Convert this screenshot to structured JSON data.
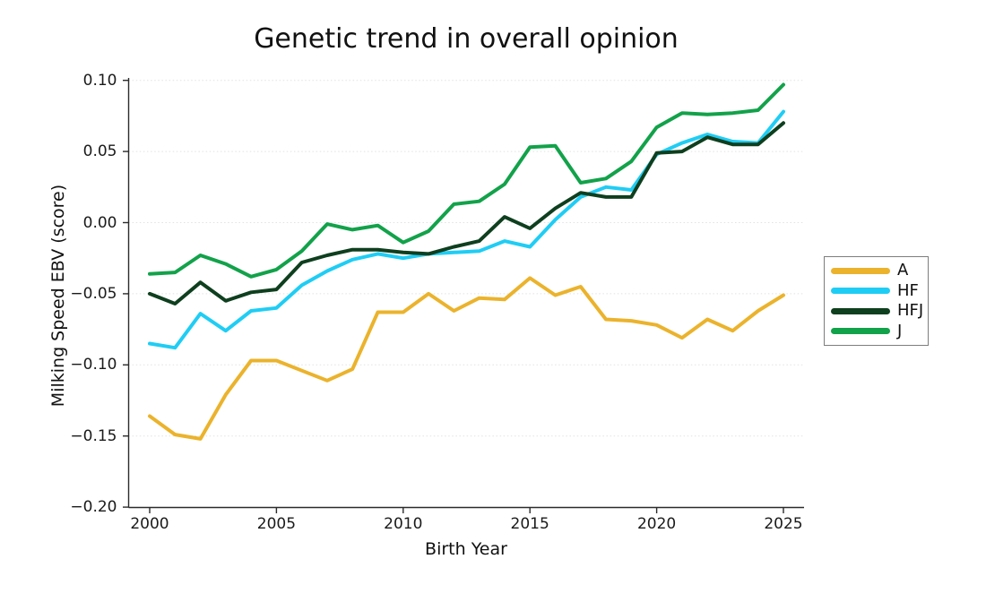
{
  "chart_data": {
    "type": "line",
    "title": "Genetic trend in overall opinion",
    "xlabel": "Birth Year",
    "ylabel": "Milking Speed EBV (score)",
    "xlim": [
      1999.1,
      2026
    ],
    "ylim": [
      -0.2,
      0.1
    ],
    "grid": "horizontal-dotted",
    "legend_position": "right-outside",
    "x": [
      2000,
      2001,
      2002,
      2003,
      2004,
      2005,
      2006,
      2007,
      2008,
      2009,
      2010,
      2011,
      2012,
      2013,
      2014,
      2015,
      2016,
      2017,
      2018,
      2019,
      2020,
      2021,
      2022,
      2023,
      2024,
      2025
    ],
    "xticks": {
      "values": [
        2000,
        2005,
        2010,
        2015,
        2020,
        2025
      ],
      "labels": [
        "2000",
        "2005",
        "2010",
        "2015",
        "2020",
        "2025"
      ]
    },
    "yticks": {
      "values": [
        0.1,
        0.05,
        0.0,
        -0.05,
        -0.1,
        -0.15,
        -0.2
      ],
      "labels": [
        "0.10",
        "0.05",
        "0.00",
        "−0.05",
        "−0.10",
        "−0.15",
        "−0.20"
      ]
    },
    "series": [
      {
        "name": "A",
        "color": "#EBB32C",
        "values": [
          -0.136,
          -0.149,
          -0.152,
          -0.121,
          -0.097,
          -0.097,
          -0.104,
          -0.111,
          -0.103,
          -0.063,
          -0.063,
          -0.05,
          -0.062,
          -0.053,
          -0.054,
          -0.039,
          -0.051,
          -0.045,
          -0.068,
          -0.069,
          -0.072,
          -0.081,
          -0.068,
          -0.076,
          -0.062,
          -0.051
        ]
      },
      {
        "name": "HF",
        "color": "#1FCDF4",
        "values": [
          -0.085,
          -0.088,
          -0.064,
          -0.076,
          -0.062,
          -0.06,
          -0.044,
          -0.034,
          -0.026,
          -0.022,
          -0.025,
          -0.022,
          -0.021,
          -0.02,
          -0.013,
          -0.017,
          0.002,
          0.018,
          0.025,
          0.023,
          0.048,
          0.056,
          0.062,
          0.057,
          0.056,
          0.078
        ]
      },
      {
        "name": "HFJ",
        "color": "#0E3F1E",
        "values": [
          -0.05,
          -0.057,
          -0.042,
          -0.055,
          -0.049,
          -0.047,
          -0.028,
          -0.023,
          -0.019,
          -0.019,
          -0.021,
          -0.022,
          -0.017,
          -0.013,
          0.004,
          -0.004,
          0.01,
          0.021,
          0.018,
          0.018,
          0.049,
          0.05,
          0.06,
          0.055,
          0.055,
          0.07
        ]
      },
      {
        "name": "J",
        "color": "#12A24A",
        "values": [
          -0.036,
          -0.035,
          -0.023,
          -0.029,
          -0.038,
          -0.033,
          -0.02,
          -0.001,
          -0.005,
          -0.002,
          -0.014,
          -0.006,
          0.013,
          0.015,
          0.027,
          0.053,
          0.054,
          0.028,
          0.031,
          0.043,
          0.067,
          0.077,
          0.076,
          0.077,
          0.079,
          0.097
        ]
      }
    ],
    "colors": {
      "grid": "#E2E2E2",
      "spine": "#2b2b2b",
      "text": "#1a1a1a",
      "background": "#ffffff"
    }
  }
}
